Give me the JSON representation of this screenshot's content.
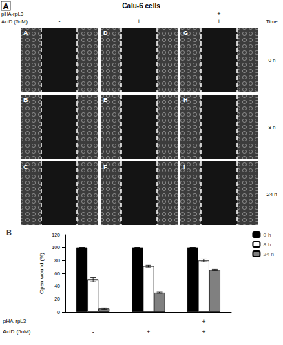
{
  "panel_a": {
    "panel_label": "A",
    "title": "Calu-6 cells",
    "time_header": "Time",
    "conditions": [
      {
        "label": "pHA-rpL3",
        "values": [
          "-",
          "-",
          "+"
        ]
      },
      {
        "label": "ActD (5nM)",
        "values": [
          "-",
          "+",
          "+"
        ]
      }
    ],
    "times": [
      "0 h",
      "8 h",
      "24 h"
    ],
    "image_labels": [
      [
        "A",
        "D",
        "G"
      ],
      [
        "B",
        "E",
        "H"
      ],
      [
        "C",
        "F",
        "I"
      ]
    ]
  },
  "panel_label_b": "B",
  "chart_data": {
    "type": "bar",
    "categories": [
      null,
      null,
      null
    ],
    "y_label": "Open wound (%)",
    "ylim": [
      0,
      120
    ],
    "yticks": [
      0,
      20,
      40,
      60,
      80,
      100,
      120
    ],
    "grid": false,
    "legend": "upper right",
    "conditions": [
      {
        "label": "pHA-rpL3",
        "values": [
          "-",
          "-",
          "+"
        ]
      },
      {
        "label": "ActD (5nM)",
        "values": [
          "-",
          "+",
          "+"
        ]
      }
    ],
    "series": [
      {
        "name": "0 h",
        "color": "#000000",
        "values": [
          100,
          100,
          100
        ],
        "errors": [
          0,
          0,
          0
        ]
      },
      {
        "name": "8 h",
        "color": "#ffffff",
        "values": [
          50,
          71,
          80
        ],
        "errors": [
          3,
          1.5,
          2
        ]
      },
      {
        "name": "24 h",
        "color": "#808080",
        "values": [
          5,
          30,
          65
        ],
        "errors": [
          1,
          1,
          1
        ]
      }
    ]
  }
}
